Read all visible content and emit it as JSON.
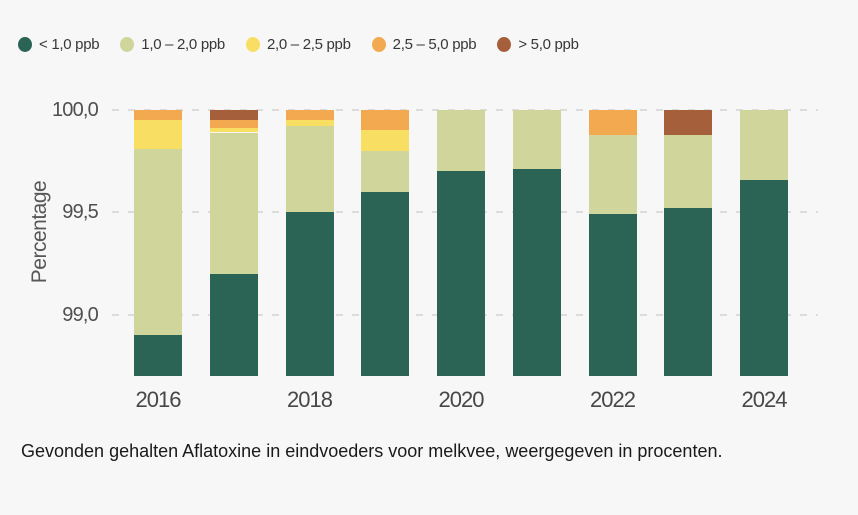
{
  "page": {
    "background": "#f7f7f8"
  },
  "caption": "Gevonden gehalten Aflatoxine in eindvoeders voor melkvee, weergegeven in procenten.",
  "chart_data": {
    "type": "bar",
    "stacked": true,
    "ylabel": "Percentage",
    "xlabel": "",
    "categories": [
      "2016",
      "2017",
      "2018",
      "2019",
      "2020",
      "2021",
      "2022",
      "2023",
      "2024"
    ],
    "x_axis_labels_shown": [
      "2016",
      "2018",
      "2020",
      "2022",
      "2024"
    ],
    "series": [
      {
        "name": "< 1,0 ppb",
        "color": "#2b6455",
        "values": [
          98.9,
          99.2,
          99.5,
          99.6,
          99.7,
          99.71,
          99.49,
          99.52,
          99.66
        ]
      },
      {
        "name": "1,0 – 2,0 ppb",
        "color": "#cfd59b",
        "values": [
          0.91,
          0.69,
          0.42,
          0.2,
          0.3,
          0.29,
          0.39,
          0.36,
          0.34
        ]
      },
      {
        "name": "2,0 – 2,5 ppb",
        "color": "#f8de62",
        "values": [
          0.14,
          0.02,
          0.03,
          0.1,
          0,
          0,
          0,
          0,
          0
        ]
      },
      {
        "name": "2,5 – 5,0 ppb",
        "color": "#f2a94f",
        "values": [
          0.05,
          0.04,
          0.05,
          0.1,
          0,
          0,
          0.12,
          0,
          0
        ]
      },
      {
        "name": "> 5,0 ppb",
        "color": "#a5603b",
        "values": [
          0,
          0.05,
          0,
          0,
          0,
          0,
          0,
          0.12,
          0
        ]
      }
    ],
    "ylim": [
      98.7,
      100.0
    ],
    "yticks": [
      {
        "value": 99.0,
        "label": "99,0"
      },
      {
        "value": 99.5,
        "label": "99,5"
      },
      {
        "value": 100.0,
        "label": "100,0"
      }
    ],
    "grid": "horizontal-dashed",
    "legend_position": "top-left",
    "colors": {
      "grid": "#dcdcdc",
      "tick_text": "#4f4f4f",
      "axis_title_text": "#575757",
      "caption_text": "#1a1a1a"
    }
  }
}
